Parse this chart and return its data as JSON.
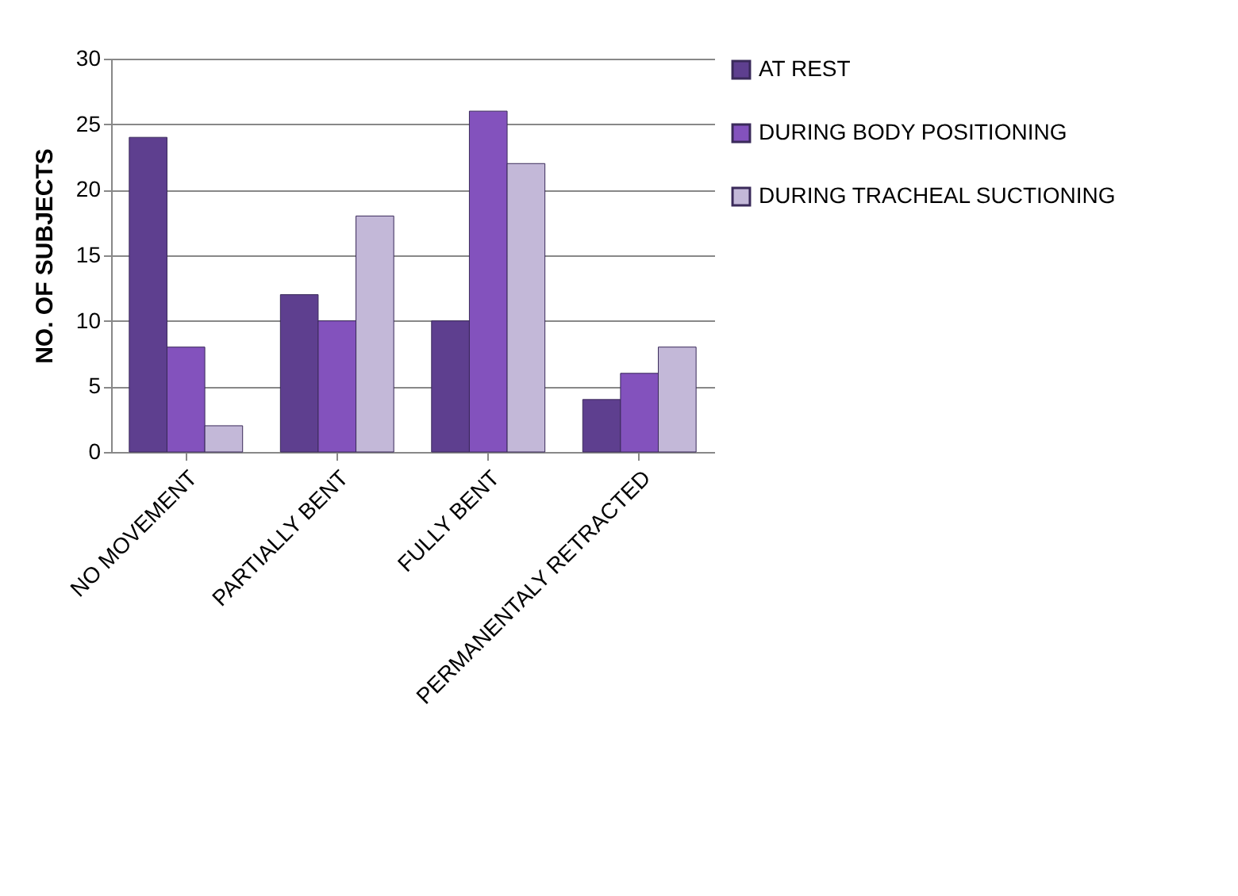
{
  "chart_data": {
    "type": "bar",
    "ylabel": "NO. OF SUBJECTS",
    "categories": [
      "NO MOVEMENT",
      "PARTIALLY BENT",
      "FULLY BENT",
      "PERMANENTALY RETRACTED"
    ],
    "series": [
      {
        "name": "AT REST",
        "color": "#5e3f8f",
        "values": [
          24,
          12,
          10,
          4
        ]
      },
      {
        "name": "DURING BODY POSITIONING",
        "color": "#8352bd",
        "values": [
          8,
          10,
          26,
          6
        ]
      },
      {
        "name": "DURING TRACHEAL SUCTIONING",
        "color": "#c3b8d8",
        "values": [
          2,
          18,
          22,
          8
        ]
      }
    ],
    "ylim": [
      0,
      30
    ],
    "yticks": [
      0,
      5,
      10,
      15,
      20,
      25,
      30
    ],
    "grid": "y",
    "legend": "right"
  }
}
